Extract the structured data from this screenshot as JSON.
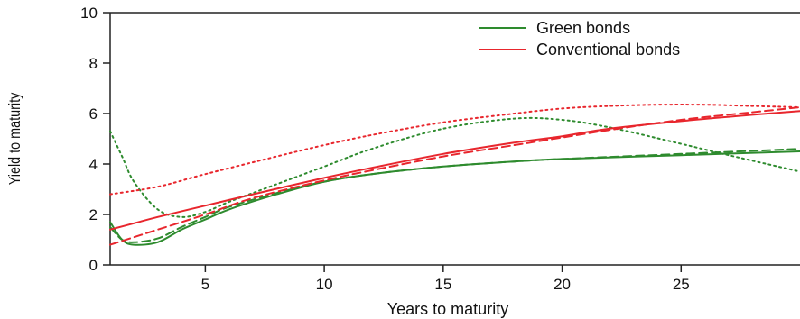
{
  "chart_data": {
    "type": "line",
    "title": "",
    "xlabel": "Years to maturity",
    "ylabel": "Yield to maturity",
    "xlim": [
      1,
      30
    ],
    "ylim": [
      0,
      10
    ],
    "x_ticks": [
      5,
      10,
      15,
      20,
      25
    ],
    "y_ticks": [
      0,
      2,
      4,
      6,
      8,
      10
    ],
    "grid": false,
    "legend_position": "top-right",
    "legend": [
      {
        "label": "Green bonds",
        "color": "#2e8b2e"
      },
      {
        "label": "Conventional bonds",
        "color": "#e8262d"
      }
    ],
    "series": [
      {
        "group": "Green bonds",
        "style": "solid",
        "color": "#2e8b2e",
        "x": [
          1,
          1.5,
          2,
          3,
          4,
          5,
          6,
          8,
          10,
          12,
          15,
          18,
          20,
          25,
          30
        ],
        "y": [
          1.7,
          1.0,
          0.8,
          0.9,
          1.4,
          1.8,
          2.2,
          2.8,
          3.3,
          3.6,
          3.9,
          4.1,
          4.2,
          4.35,
          4.5
        ]
      },
      {
        "group": "Green bonds",
        "style": "dashed",
        "color": "#2e8b2e",
        "x": [
          1,
          1.5,
          2,
          3,
          4,
          5,
          6,
          8,
          10,
          12,
          15,
          18,
          20,
          25,
          30
        ],
        "y": [
          1.5,
          1.0,
          0.9,
          1.05,
          1.5,
          1.9,
          2.3,
          2.85,
          3.3,
          3.6,
          3.9,
          4.1,
          4.2,
          4.4,
          4.6
        ]
      },
      {
        "group": "Green bonds",
        "style": "dotted",
        "color": "#2e8b2e",
        "x": [
          1,
          1.5,
          2,
          3,
          4,
          5,
          6,
          8,
          10,
          12,
          15,
          18,
          20,
          22,
          25,
          27,
          30
        ],
        "y": [
          5.3,
          4.3,
          3.3,
          2.2,
          1.9,
          2.1,
          2.5,
          3.2,
          3.9,
          4.6,
          5.4,
          5.8,
          5.75,
          5.45,
          4.8,
          4.35,
          3.7
        ]
      },
      {
        "group": "Conventional bonds",
        "style": "solid",
        "color": "#e8262d",
        "x": [
          1,
          2,
          3,
          5,
          7,
          10,
          12,
          15,
          18,
          20,
          22,
          25,
          28,
          30
        ],
        "y": [
          1.4,
          1.65,
          1.9,
          2.35,
          2.8,
          3.45,
          3.85,
          4.4,
          4.85,
          5.1,
          5.4,
          5.7,
          5.95,
          6.1
        ]
      },
      {
        "group": "Conventional bonds",
        "style": "dashed",
        "color": "#e8262d",
        "x": [
          1,
          2,
          3,
          5,
          7,
          10,
          12,
          15,
          18,
          20,
          22,
          25,
          28,
          30
        ],
        "y": [
          0.8,
          1.1,
          1.4,
          2.0,
          2.65,
          3.35,
          3.75,
          4.3,
          4.75,
          5.05,
          5.35,
          5.75,
          6.05,
          6.25
        ]
      },
      {
        "group": "Conventional bonds",
        "style": "dotted",
        "color": "#e8262d",
        "x": [
          1,
          3,
          5,
          8,
          10,
          12,
          15,
          18,
          20,
          22,
          24,
          26,
          28,
          30
        ],
        "y": [
          2.8,
          3.1,
          3.6,
          4.3,
          4.75,
          5.15,
          5.65,
          6.0,
          6.2,
          6.3,
          6.35,
          6.35,
          6.3,
          6.25
        ]
      }
    ]
  }
}
